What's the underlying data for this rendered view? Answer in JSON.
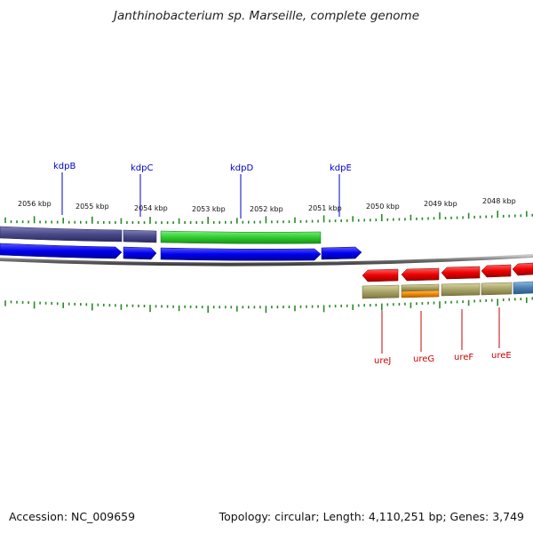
{
  "title": "Janthinobacterium sp. Marseille, complete genome",
  "footer": {
    "accession": "Accession: NC_009659",
    "info": "Topology: circular; Length: 4,110,251 bp; Genes: 3,749"
  },
  "ruler_labels": [
    "2056 kbp",
    "2055 kbp",
    "2054 kbp",
    "2053 kbp",
    "2052 kbp",
    "2051 kbp",
    "2050 kbp",
    "2049 kbp",
    "2048 kbp"
  ],
  "genes_top": [
    {
      "name": "kdpB",
      "color": "#0000cc"
    },
    {
      "name": "kdpC",
      "color": "#0000cc"
    },
    {
      "name": "kdpD",
      "color": "#0000cc"
    },
    {
      "name": "kdpE",
      "color": "#0000cc"
    }
  ],
  "genes_bottom": [
    {
      "name": "ureJ",
      "color": "#cc0000"
    },
    {
      "name": "ureG",
      "color": "#cc0000"
    },
    {
      "name": "ureF",
      "color": "#cc0000"
    },
    {
      "name": "ureE",
      "color": "#cc0000"
    }
  ],
  "colors": {
    "forward_cds": "#0000ee",
    "reverse_cds": "#ee0000",
    "purple_band": "#4a4a8a",
    "green_band": "#2ecc2e",
    "olive_band": "#a8a468",
    "orange_band": "#f08a00",
    "steel_band": "#4a80b0",
    "backbone": "#808080",
    "ticks": "#2a8a2a"
  }
}
